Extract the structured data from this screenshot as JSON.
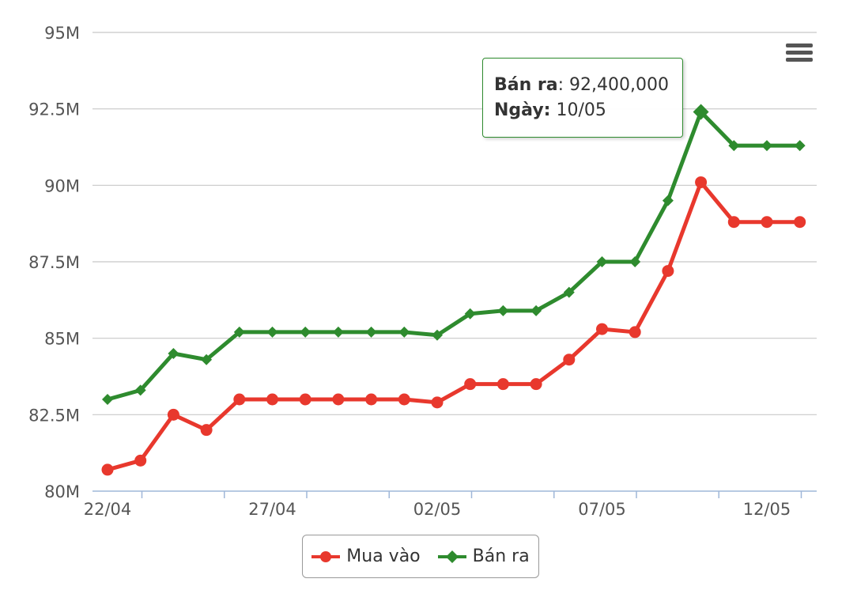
{
  "chart_data": {
    "type": "line",
    "title": "",
    "xlabel": "",
    "ylabel": "",
    "ylim": [
      80000000,
      95000000
    ],
    "yticks": [
      {
        "value": 80000000,
        "label": "80M"
      },
      {
        "value": 82500000,
        "label": "82.5M"
      },
      {
        "value": 85000000,
        "label": "85M"
      },
      {
        "value": 87500000,
        "label": "87.5M"
      },
      {
        "value": 90000000,
        "label": "90M"
      },
      {
        "value": 92500000,
        "label": "92.5M"
      },
      {
        "value": 95000000,
        "label": "95M"
      }
    ],
    "categories": [
      "22/04",
      "23/04",
      "24/04",
      "25/04",
      "26/04",
      "27/04",
      "28/04",
      "29/04",
      "30/04",
      "01/05",
      "02/05",
      "03/05",
      "04/05",
      "05/05",
      "06/05",
      "07/05",
      "08/05",
      "09/05",
      "10/05",
      "11/05",
      "12/05",
      "13/05"
    ],
    "xtick_labels": [
      "22/04",
      "27/04",
      "02/05",
      "07/05",
      "12/05"
    ],
    "grid": true,
    "legend_position": "bottom-center",
    "series": [
      {
        "name": "Mua vào",
        "color": "#e8382d",
        "marker": "circle",
        "values": [
          80700000,
          81000000,
          82500000,
          82000000,
          83000000,
          83000000,
          83000000,
          83000000,
          83000000,
          83000000,
          82900000,
          83500000,
          83500000,
          83500000,
          84300000,
          85300000,
          85200000,
          87200000,
          90100000,
          88800000,
          88800000,
          88800000
        ]
      },
      {
        "name": "Bán ra",
        "color": "#2e8b2e",
        "marker": "diamond",
        "values": [
          83000000,
          83300000,
          84500000,
          84300000,
          85200000,
          85200000,
          85200000,
          85200000,
          85200000,
          85200000,
          85100000,
          85800000,
          85900000,
          85900000,
          86500000,
          87500000,
          87500000,
          89500000,
          92400000,
          91300000,
          91300000,
          91300000
        ]
      }
    ]
  },
  "tooltip": {
    "series_label": "Bán ra",
    "value": "92,400,000",
    "date_label": "Ngày:",
    "date_value": "10/05"
  },
  "menu_icon": "hamburger-menu-icon"
}
